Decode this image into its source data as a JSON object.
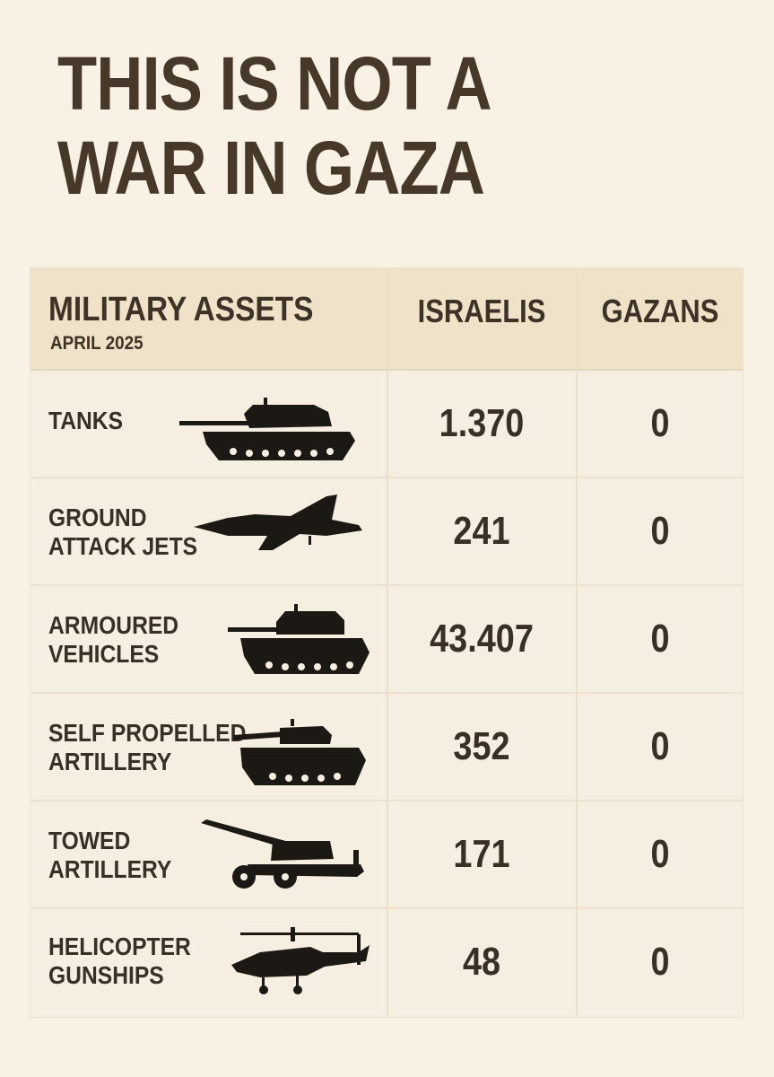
{
  "title": {
    "line1": "THIS IS NOT A",
    "line2": "WAR IN GAZA"
  },
  "table": {
    "header": {
      "assets": "MILITARY ASSETS",
      "date": "APRIL 2025",
      "israelis": "ISRAELIS",
      "gazans": "GAZANS"
    },
    "rows": [
      {
        "label": "TANKS",
        "icon": "tank-icon",
        "israelis": "1.370",
        "gazans": "0"
      },
      {
        "label": "GROUND\nATTACK JETS",
        "icon": "jet-icon",
        "israelis": "241",
        "gazans": "0"
      },
      {
        "label": "ARMOURED\nVEHICLES",
        "icon": "armoured-vehicle-icon",
        "israelis": "43.407",
        "gazans": "0"
      },
      {
        "label": "SELF PROPELLED\nARTILLERY",
        "icon": "self-propelled-artillery-icon",
        "israelis": "352",
        "gazans": "0"
      },
      {
        "label": "TOWED\nARTILLERY",
        "icon": "towed-artillery-icon",
        "israelis": "171",
        "gazans": "0"
      },
      {
        "label": "HELICOPTER\nGUNSHIPS",
        "icon": "helicopter-icon",
        "israelis": "48",
        "gazans": "0"
      }
    ]
  },
  "colors": {
    "background": "#f8f1e4",
    "header_background": "#efe2c8",
    "title_text": "#47392a",
    "icon_fill": "#1c1814"
  }
}
